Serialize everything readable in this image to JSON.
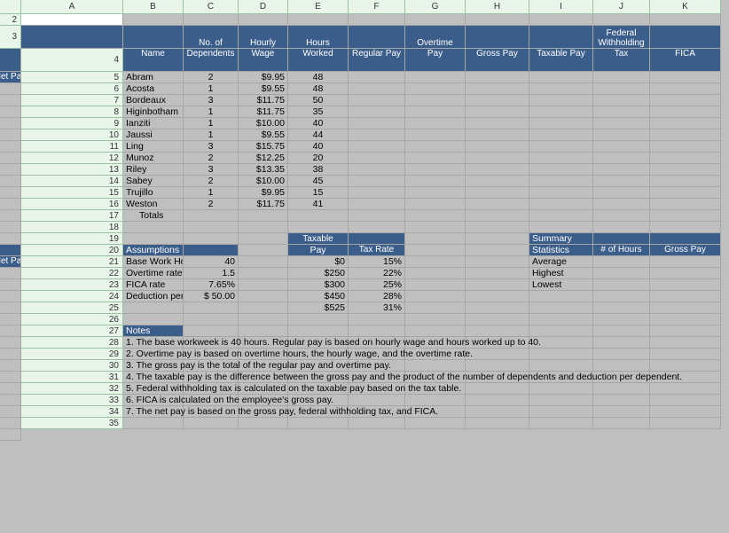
{
  "columns": [
    "A",
    "B",
    "C",
    "D",
    "E",
    "F",
    "G",
    "H",
    "I",
    "J",
    "K"
  ],
  "rowNumbers": [
    2,
    3,
    4,
    5,
    6,
    7,
    8,
    9,
    10,
    11,
    12,
    13,
    14,
    15,
    16,
    17,
    18,
    19,
    20,
    21,
    22,
    23,
    24,
    25,
    26,
    27,
    28,
    29,
    30,
    31,
    32,
    33,
    34,
    35
  ],
  "header1": {
    "A": "",
    "B": "No. of",
    "C": "Hourly",
    "D": "Hours",
    "E": "",
    "F": "Overtime",
    "G": "",
    "H": "",
    "I": "Federal",
    "J": "",
    "K": ""
  },
  "header1b": {
    "I": "Withholding"
  },
  "header2": {
    "A": "Name",
    "B": "Dependents",
    "C": "Wage",
    "D": "Worked",
    "E": "Regular Pay",
    "F": "Pay",
    "G": "Gross Pay",
    "H": "Taxable Pay",
    "I": "Tax",
    "J": "FICA",
    "K": "Net Pay"
  },
  "data": [
    {
      "A": "Abram",
      "B": "2",
      "C": "$9.95",
      "D": "48"
    },
    {
      "A": "Acosta",
      "B": "1",
      "C": "$9.55",
      "D": "48"
    },
    {
      "A": "Bordeaux",
      "B": "3",
      "C": "$11.75",
      "D": "50"
    },
    {
      "A": "Higinbotham",
      "B": "1",
      "C": "$11.75",
      "D": "35"
    },
    {
      "A": "Ianziti",
      "B": "1",
      "C": "$10.00",
      "D": "40"
    },
    {
      "A": "Jaussi",
      "B": "1",
      "C": "$9.55",
      "D": "44"
    },
    {
      "A": "Ling",
      "B": "3",
      "C": "$15.75",
      "D": "40"
    },
    {
      "A": "Munoz",
      "B": "2",
      "C": "$12.25",
      "D": "20"
    },
    {
      "A": "Riley",
      "B": "3",
      "C": "$13.35",
      "D": "38"
    },
    {
      "A": "Sabey",
      "B": "2",
      "C": "$10.00",
      "D": "45"
    },
    {
      "A": "Trujillo",
      "B": "1",
      "C": "$9.95",
      "D": "15"
    },
    {
      "A": "Weston",
      "B": "2",
      "C": "$11.75",
      "D": "41"
    }
  ],
  "totalsLabel": "Totals",
  "assumpHeader": "Assumptions",
  "taxHdr1": "Taxable",
  "taxHdr2": "Pay",
  "taxRateHdr": "Tax Rate",
  "summHdr1": "Summary",
  "summHdr2": "Statistics",
  "summCols": {
    "I": "# of Hours",
    "J": "Gross Pay",
    "K": "Net Pay"
  },
  "assumptions": [
    {
      "A": "Base Work Hours",
      "B": "40",
      "D": "$0",
      "E": "15%",
      "H": "Average"
    },
    {
      "A": "Overtime rate",
      "B": "1.5",
      "D": "$250",
      "E": "22%",
      "H": "Highest"
    },
    {
      "A": "FICA rate",
      "B": "7.65%",
      "D": "$300",
      "E": "25%",
      "H": "Lowest"
    },
    {
      "A": "Deduction per Depend",
      "Bpre": "$",
      "B": "50.00",
      "D": "$450",
      "E": "28%"
    },
    {
      "D": "$525",
      "E": "31%"
    }
  ],
  "notesHdr": "Notes",
  "notes": [
    "1. The base workweek is 40 hours. Regular pay is based on hourly wage and hours worked up to 40.",
    "2. Overtime pay is based on overtime hours, the hourly wage, and the overtime rate.",
    "3. The gross pay is the total of the regular pay and overtime pay.",
    "4. The taxable pay is the difference between the gross pay     and the product of the number of dependents and deduction per dependent.",
    "5. Federal withholding tax is calculated on the taxable pay based on the tax table.",
    "6. FICA is calculated on the employee's gross pay.",
    "7. The net pay is based on the gross pay, federal withholding tax, and FICA."
  ],
  "colors": {
    "headerBlue": "#3b5d8a",
    "gridBg": "#bfbfbf",
    "colHdrBg": "#e8f5e9"
  }
}
